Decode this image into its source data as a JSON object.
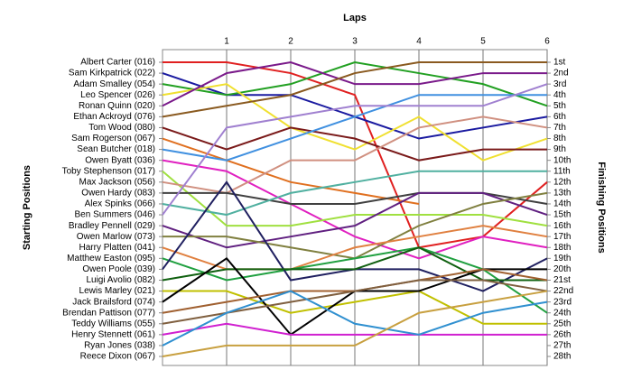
{
  "chart_data": {
    "type": "line",
    "title": "Laps",
    "y_label": "Starting Positions",
    "y2_label": "Finishing Positions",
    "x": [
      0,
      1,
      2,
      3,
      4,
      5,
      6
    ],
    "xlim": [
      0,
      6
    ],
    "xticks": [
      1,
      2,
      3,
      4,
      5,
      6
    ],
    "ylim": [
      28,
      1
    ],
    "y2lim": [
      28,
      1
    ],
    "y2ticks": [
      {
        "value": 1,
        "label": "1st"
      },
      {
        "value": 2,
        "label": "2nd"
      },
      {
        "value": 3,
        "label": "3rd"
      },
      {
        "value": 4,
        "label": "4th"
      },
      {
        "value": 5,
        "label": "5th"
      },
      {
        "value": 6,
        "label": "6th"
      },
      {
        "value": 7,
        "label": "7th"
      },
      {
        "value": 8,
        "label": "8th"
      },
      {
        "value": 9,
        "label": "9th"
      },
      {
        "value": 10,
        "label": "10th"
      },
      {
        "value": 11,
        "label": "11th"
      },
      {
        "value": 12,
        "label": "12th"
      },
      {
        "value": 13,
        "label": "13th"
      },
      {
        "value": 14,
        "label": "14th"
      },
      {
        "value": 15,
        "label": "15th"
      },
      {
        "value": 16,
        "label": "16th"
      },
      {
        "value": 17,
        "label": "17th"
      },
      {
        "value": 18,
        "label": "18th"
      },
      {
        "value": 19,
        "label": "19th"
      },
      {
        "value": 20,
        "label": "20th"
      },
      {
        "value": 21,
        "label": "21st"
      },
      {
        "value": 22,
        "label": "22nd"
      },
      {
        "value": 23,
        "label": "23rd"
      },
      {
        "value": 24,
        "label": "24th"
      },
      {
        "value": 25,
        "label": "25th"
      },
      {
        "value": 26,
        "label": "26th"
      },
      {
        "value": 27,
        "label": "27th"
      },
      {
        "value": 28,
        "label": "28th"
      }
    ],
    "grid": true,
    "series": [
      {
        "name": "Albert Carter (016)",
        "color": "#e02020",
        "values": [
          1,
          1,
          2,
          4,
          18,
          17,
          12
        ]
      },
      {
        "name": "Sam Kirkpatrick (022)",
        "color": "#1a1aa0",
        "values": [
          2,
          4,
          4,
          6,
          8,
          7,
          6
        ]
      },
      {
        "name": "Adam Smalley (054)",
        "color": "#22a022",
        "values": [
          3,
          4,
          3,
          1,
          2,
          3,
          5
        ]
      },
      {
        "name": "Leo Spencer (026)",
        "color": "#f0e030",
        "values": [
          4,
          3,
          7,
          9,
          6,
          10,
          8
        ]
      },
      {
        "name": "Ronan Quinn (020)",
        "color": "#7a1a8a",
        "values": [
          5,
          2,
          1,
          3,
          3,
          2,
          2
        ]
      },
      {
        "name": "Ethan Ackroyd (076)",
        "color": "#8a5a20",
        "values": [
          6,
          5,
          4,
          2,
          1,
          1,
          1
        ]
      },
      {
        "name": "Tom Wood (080)",
        "color": "#7a1a1a",
        "values": [
          7,
          9,
          7,
          8,
          10,
          9,
          9
        ]
      },
      {
        "name": "Sam Rogerson (067)",
        "color": "#e07020",
        "values": [
          8,
          10,
          12,
          13,
          14,
          null,
          null
        ]
      },
      {
        "name": "Sean Butcher (018)",
        "color": "#4090e0",
        "values": [
          9,
          10,
          8,
          6,
          4,
          4,
          4
        ]
      },
      {
        "name": "Owen Byatt (036)",
        "color": "#e020c0",
        "values": [
          10,
          11,
          14,
          17,
          19,
          17,
          18
        ]
      },
      {
        "name": "Toby Stephenson (017)",
        "color": "#a0e040",
        "values": [
          11,
          16,
          16,
          15,
          15,
          15,
          16
        ]
      },
      {
        "name": "Max Jackson (056)",
        "color": "#d09080",
        "values": [
          12,
          13,
          10,
          10,
          7,
          6,
          7
        ]
      },
      {
        "name": "Owen Hardy (083)",
        "color": "#404040",
        "values": [
          13,
          13,
          14,
          14,
          13,
          13,
          14
        ]
      },
      {
        "name": "Alex Spinks (066)",
        "color": "#50b0a0",
        "values": [
          14,
          15,
          13,
          12,
          11,
          11,
          11
        ]
      },
      {
        "name": "Ben Summers (046)",
        "color": "#a080d0",
        "values": [
          15,
          7,
          6,
          5,
          5,
          5,
          3
        ]
      },
      {
        "name": "Bradley Pennell (029)",
        "color": "#602080",
        "values": [
          16,
          18,
          17,
          16,
          13,
          13,
          15
        ]
      },
      {
        "name": "Owen Marlow (073)",
        "color": "#808040",
        "values": [
          17,
          17,
          18,
          19,
          16,
          14,
          13
        ]
      },
      {
        "name": "Harry Platten (041)",
        "color": "#e08040",
        "values": [
          18,
          20,
          20,
          18,
          17,
          16,
          17
        ]
      },
      {
        "name": "Matthew Easton (095)",
        "color": "#20a040",
        "values": [
          19,
          21,
          20,
          19,
          18,
          20,
          24
        ]
      },
      {
        "name": "Owen Poole (039)",
        "color": "#202060",
        "values": [
          20,
          12,
          21,
          20,
          20,
          22,
          19
        ]
      },
      {
        "name": "Luigi Avolio (082)",
        "color": "#106010",
        "values": [
          21,
          20,
          20,
          20,
          18,
          21,
          21
        ]
      },
      {
        "name": "Lewis Marley (021)",
        "color": "#c0c000",
        "values": [
          22,
          22,
          24,
          23,
          22,
          25,
          25
        ]
      },
      {
        "name": "Jack Brailsford (074)",
        "color": "#000000",
        "values": [
          23,
          19,
          26,
          22,
          22,
          20,
          20
        ]
      },
      {
        "name": "Brendan Pattison (077)",
        "color": "#a06030",
        "values": [
          24,
          23,
          22,
          22,
          21,
          20,
          21
        ]
      },
      {
        "name": "Teddy Williams (055)",
        "color": "#806040",
        "values": [
          25,
          24,
          23,
          22,
          21,
          21,
          22
        ]
      },
      {
        "name": "Henry Stennett (061)",
        "color": "#d020d0",
        "values": [
          26,
          25,
          26,
          26,
          26,
          26,
          26
        ]
      },
      {
        "name": "Ryan Jones (038)",
        "color": "#3090d0",
        "values": [
          27,
          24,
          22,
          25,
          26,
          24,
          23
        ]
      },
      {
        "name": "Reece Dixon (067)",
        "color": "#c8a040",
        "values": [
          28,
          27,
          27,
          27,
          24,
          23,
          22
        ]
      }
    ]
  }
}
